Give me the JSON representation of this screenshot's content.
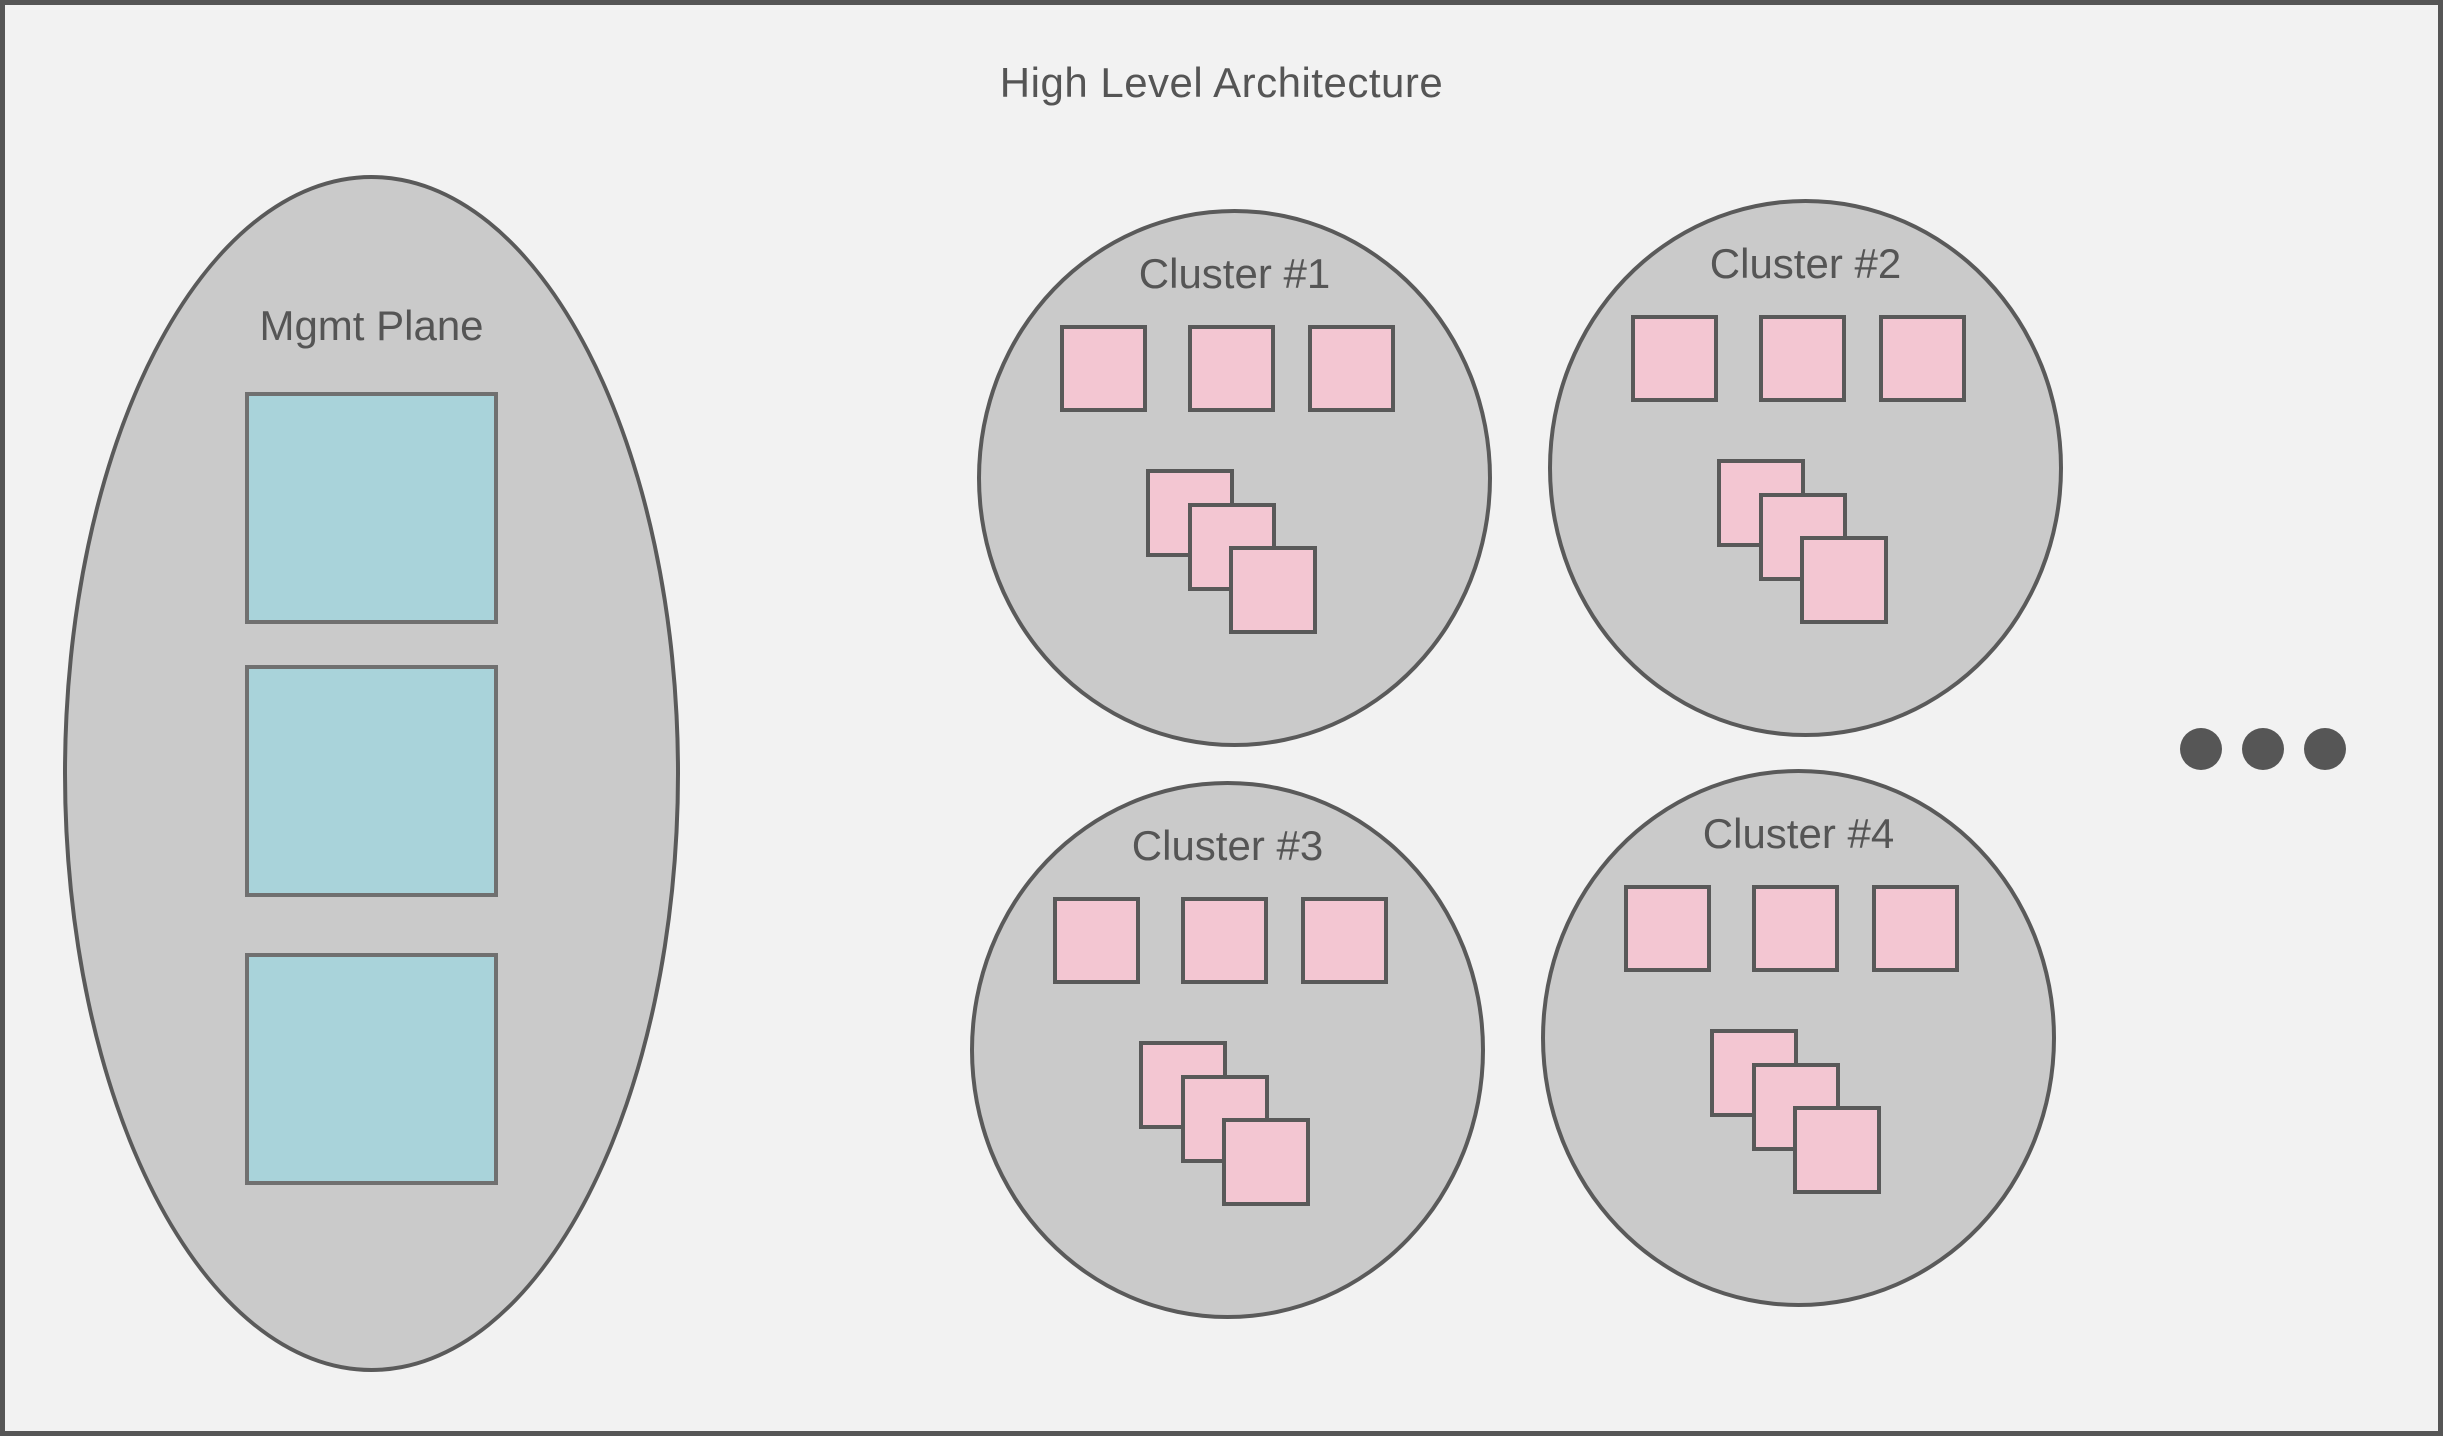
{
  "title": "High Level Architecture",
  "mgmt_plane": {
    "label": "Mgmt Plane",
    "node_box_count": 3
  },
  "clusters": [
    {
      "label": "Cluster #1",
      "row_box_count": 3,
      "stacked_box_count": 3
    },
    {
      "label": "Cluster #2",
      "row_box_count": 3,
      "stacked_box_count": 3
    },
    {
      "label": "Cluster #3",
      "row_box_count": 3,
      "stacked_box_count": 3
    },
    {
      "label": "Cluster #4",
      "row_box_count": 3,
      "stacked_box_count": 3
    }
  ],
  "ellipsis": {
    "dot_count": 3
  },
  "colors": {
    "background": "#f2f2f2",
    "shape_fill": "#cacaca",
    "shape_stroke": "#5a5a5a",
    "mgmt_box_fill": "#a9d3da",
    "cluster_box_fill": "#f3c6d2",
    "text": "#555555",
    "frame_border": "#565656",
    "dots": "#565656"
  }
}
